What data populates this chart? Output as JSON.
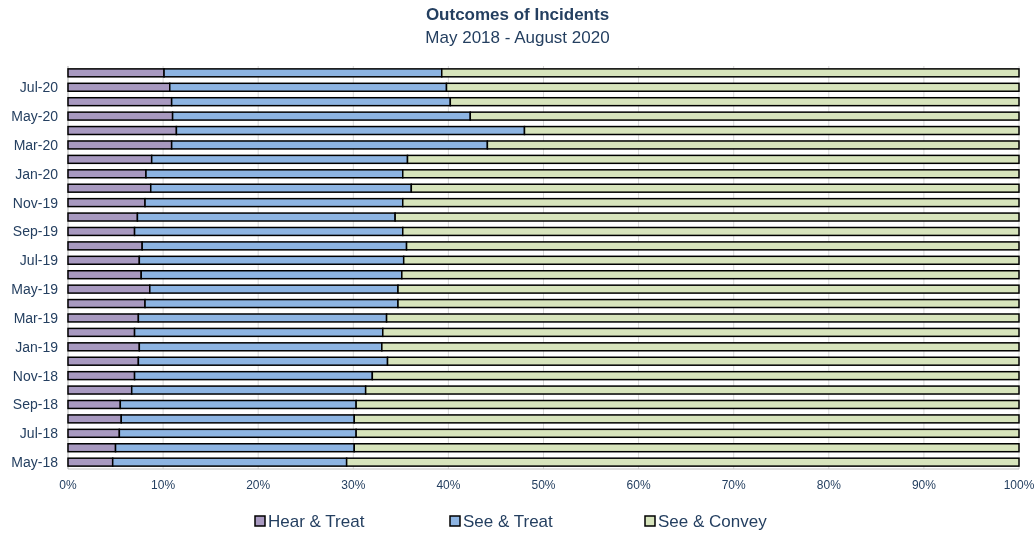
{
  "chart_data": {
    "type": "bar",
    "orientation": "horizontal",
    "stacked": true,
    "title": "Outcomes of Incidents",
    "subtitle": "May 2018 - August 2020",
    "categories": [
      null,
      "Jul-20",
      null,
      "May-20",
      null,
      "Mar-20",
      null,
      "Jan-20",
      null,
      "Nov-19",
      null,
      "Sep-19",
      null,
      "Jul-19",
      null,
      "May-19",
      null,
      "Mar-19",
      null,
      "Jan-19",
      null,
      "Nov-18",
      null,
      "Sep-18",
      null,
      "Jul-18",
      null,
      "May-18"
    ],
    "series": [
      {
        "name": "Hear & Treat",
        "color": "#a899c0",
        "values": [
          10.1,
          10.7,
          10.9,
          11.0,
          11.4,
          10.9,
          8.8,
          8.2,
          8.7,
          8.1,
          7.3,
          7.0,
          7.8,
          7.5,
          7.7,
          8.6,
          8.1,
          7.4,
          7.0,
          7.5,
          7.4,
          7.0,
          6.7,
          5.5,
          5.6,
          5.4,
          5.0,
          4.7
        ]
      },
      {
        "name": "See & Treat",
        "color": "#8db4e2",
        "values": [
          29.2,
          29.1,
          29.3,
          31.3,
          36.6,
          33.2,
          26.9,
          27.0,
          27.4,
          27.1,
          27.1,
          28.2,
          27.8,
          27.8,
          27.4,
          26.1,
          26.6,
          26.1,
          26.1,
          25.5,
          26.2,
          25.0,
          24.6,
          24.8,
          24.5,
          24.9,
          25.1,
          24.6
        ]
      },
      {
        "name": "See & Convey",
        "color": "#d7e4bc",
        "values": [
          60.7,
          60.2,
          59.8,
          57.7,
          52.0,
          55.9,
          64.3,
          64.8,
          63.9,
          64.8,
          65.6,
          64.8,
          64.4,
          64.7,
          64.9,
          65.3,
          65.3,
          66.5,
          66.9,
          67.0,
          66.4,
          68.0,
          68.7,
          69.7,
          69.9,
          69.7,
          69.9,
          70.7
        ]
      }
    ],
    "xlim": [
      0,
      100
    ],
    "xticks": [
      {
        "value": 0,
        "label": "0%"
      },
      {
        "value": 10,
        "label": "10%"
      },
      {
        "value": 20,
        "label": "20%"
      },
      {
        "value": 30,
        "label": "30%"
      },
      {
        "value": 40,
        "label": "40%"
      },
      {
        "value": 50,
        "label": "50%"
      },
      {
        "value": 60,
        "label": "60%"
      },
      {
        "value": 70,
        "label": "70%"
      },
      {
        "value": 80,
        "label": "80%"
      },
      {
        "value": 90,
        "label": "90%"
      },
      {
        "value": 100,
        "label": "100%"
      }
    ],
    "grid": "x",
    "legend": "bottom"
  }
}
